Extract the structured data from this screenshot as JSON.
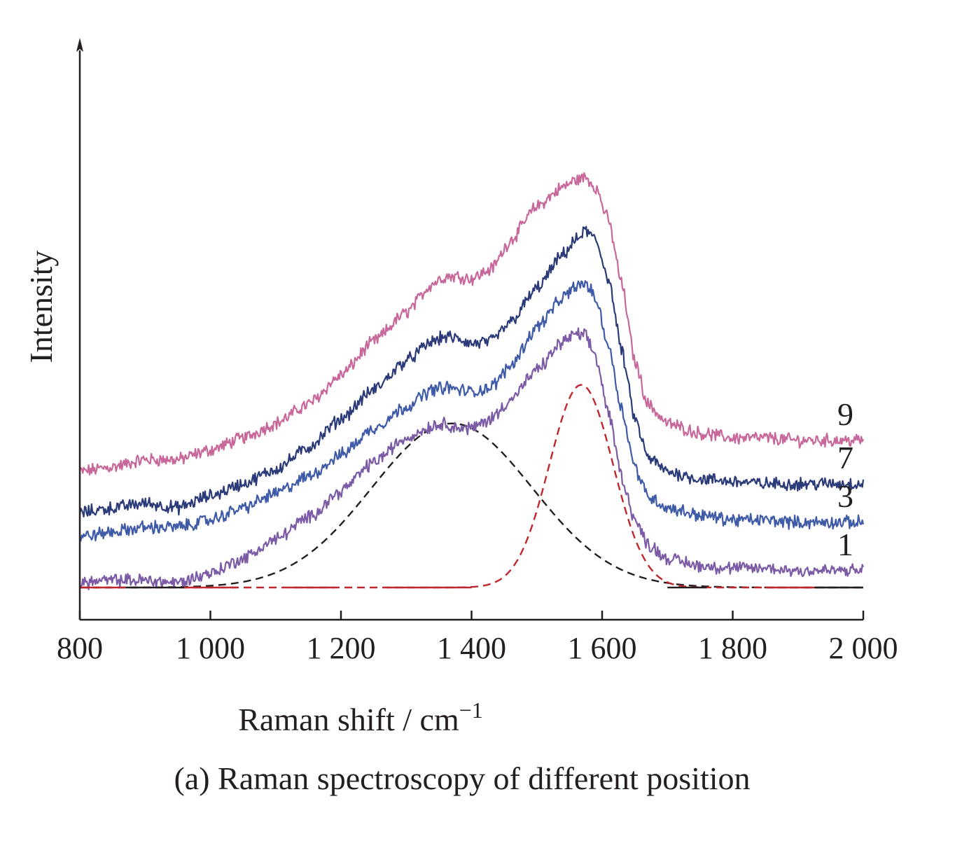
{
  "chart_data": {
    "type": "line",
    "caption": "(a) Raman spectroscopy of different position",
    "xlabel": "Raman shift / cm",
    "xlabel_superscript": "−1",
    "ylabel": "Intensity",
    "xlim": [
      800,
      2000
    ],
    "ylim": [
      0,
      1
    ],
    "x_ticks": [
      800,
      1000,
      1200,
      1400,
      1600,
      1800,
      2000
    ],
    "x_tick_labels": [
      "800",
      "1 000",
      "1 200",
      "1 400",
      "1 600",
      "1 800",
      "2 000"
    ],
    "y_ticks_shown": false,
    "y_arrow": true,
    "grid": false,
    "legend": "none",
    "series": [
      {
        "name": "9",
        "color": "#c8689a",
        "style": "solid",
        "noisy": true,
        "x": [
          800,
          850,
          900,
          950,
          1000,
          1050,
          1100,
          1150,
          1200,
          1250,
          1300,
          1340,
          1360,
          1380,
          1400,
          1430,
          1460,
          1500,
          1540,
          1560,
          1575,
          1590,
          1610,
          1630,
          1650,
          1670,
          1700,
          1750,
          1800,
          1850,
          1900,
          1950,
          2000
        ],
        "y": [
          0.24,
          0.25,
          0.265,
          0.265,
          0.285,
          0.31,
          0.34,
          0.38,
          0.44,
          0.51,
          0.57,
          0.63,
          0.645,
          0.645,
          0.64,
          0.66,
          0.72,
          0.79,
          0.83,
          0.845,
          0.85,
          0.83,
          0.76,
          0.63,
          0.47,
          0.38,
          0.34,
          0.32,
          0.31,
          0.31,
          0.305,
          0.305,
          0.305
        ]
      },
      {
        "name": "7",
        "color": "#2b3a78",
        "style": "solid",
        "noisy": true,
        "x": [
          800,
          850,
          900,
          950,
          1000,
          1050,
          1100,
          1150,
          1200,
          1250,
          1300,
          1340,
          1360,
          1380,
          1400,
          1430,
          1460,
          1500,
          1540,
          1560,
          1575,
          1590,
          1610,
          1630,
          1650,
          1670,
          1700,
          1750,
          1800,
          1850,
          1900,
          1950,
          2000
        ],
        "y": [
          0.155,
          0.165,
          0.175,
          0.165,
          0.19,
          0.215,
          0.245,
          0.29,
          0.35,
          0.41,
          0.47,
          0.51,
          0.52,
          0.515,
          0.505,
          0.51,
          0.55,
          0.62,
          0.69,
          0.72,
          0.74,
          0.72,
          0.64,
          0.49,
          0.35,
          0.27,
          0.24,
          0.225,
          0.22,
          0.215,
          0.215,
          0.215,
          0.215
        ]
      },
      {
        "name": "3",
        "color": "#3f5ba8",
        "style": "solid",
        "noisy": true,
        "x": [
          800,
          850,
          900,
          950,
          1000,
          1050,
          1100,
          1150,
          1200,
          1250,
          1300,
          1340,
          1360,
          1380,
          1400,
          1430,
          1460,
          1500,
          1540,
          1560,
          1575,
          1590,
          1610,
          1630,
          1650,
          1670,
          1700,
          1750,
          1800,
          1850,
          1900,
          1950,
          2000
        ],
        "y": [
          0.105,
          0.115,
          0.125,
          0.125,
          0.14,
          0.165,
          0.195,
          0.23,
          0.275,
          0.33,
          0.375,
          0.41,
          0.415,
          0.41,
          0.405,
          0.415,
          0.46,
          0.54,
          0.6,
          0.625,
          0.63,
          0.6,
          0.5,
          0.37,
          0.25,
          0.19,
          0.165,
          0.15,
          0.14,
          0.14,
          0.135,
          0.135,
          0.135
        ]
      },
      {
        "name": "1",
        "color": "#7b5aa6",
        "style": "solid",
        "noisy": true,
        "x": [
          800,
          850,
          900,
          950,
          1000,
          1050,
          1100,
          1150,
          1200,
          1250,
          1300,
          1340,
          1360,
          1380,
          1400,
          1430,
          1460,
          1500,
          1540,
          1560,
          1575,
          1590,
          1610,
          1630,
          1650,
          1670,
          1700,
          1750,
          1800,
          1850,
          1900,
          1950,
          2000
        ],
        "y": [
          0.01,
          0.015,
          0.015,
          0.01,
          0.03,
          0.06,
          0.1,
          0.145,
          0.2,
          0.26,
          0.31,
          0.335,
          0.34,
          0.33,
          0.33,
          0.35,
          0.39,
          0.45,
          0.51,
          0.525,
          0.52,
          0.48,
          0.36,
          0.23,
          0.14,
          0.09,
          0.06,
          0.045,
          0.04,
          0.04,
          0.035,
          0.035,
          0.035
        ]
      },
      {
        "name": "",
        "color": "#231f20",
        "style": "dashed",
        "noisy": false,
        "peak_center": 1370,
        "peak_fwhm": 290,
        "peak_height": 0.34,
        "x": [
          800,
          900,
          1000,
          1050,
          1100,
          1150,
          1200,
          1250,
          1300,
          1340,
          1370,
          1400,
          1450,
          1500,
          1550,
          1600,
          1650,
          1700,
          1750,
          1800,
          1900,
          2000
        ],
        "y": [
          0.0,
          0.0,
          0.005,
          0.012,
          0.03,
          0.065,
          0.125,
          0.2,
          0.27,
          0.315,
          0.34,
          0.33,
          0.27,
          0.19,
          0.115,
          0.06,
          0.025,
          0.01,
          0.003,
          0.0,
          0.0,
          0.0
        ]
      },
      {
        "name": "",
        "color": "#c0272d",
        "style": "dashed",
        "noisy": false,
        "peak_center": 1568,
        "peak_fwhm": 115,
        "peak_height": 0.42,
        "x": [
          800,
          1300,
          1400,
          1450,
          1480,
          1500,
          1520,
          1540,
          1555,
          1568,
          1580,
          1600,
          1620,
          1640,
          1660,
          1690,
          1720,
          1760,
          2000
        ],
        "y": [
          0.0,
          0.0,
          0.005,
          0.03,
          0.075,
          0.13,
          0.22,
          0.33,
          0.395,
          0.42,
          0.405,
          0.35,
          0.25,
          0.15,
          0.08,
          0.025,
          0.006,
          0.0,
          0.0
        ]
      }
    ],
    "curve_labels": [
      {
        "text": "9",
        "series": "9"
      },
      {
        "text": "7",
        "series": "7"
      },
      {
        "text": "3",
        "series": "3"
      },
      {
        "text": "1",
        "series": "1"
      }
    ]
  }
}
